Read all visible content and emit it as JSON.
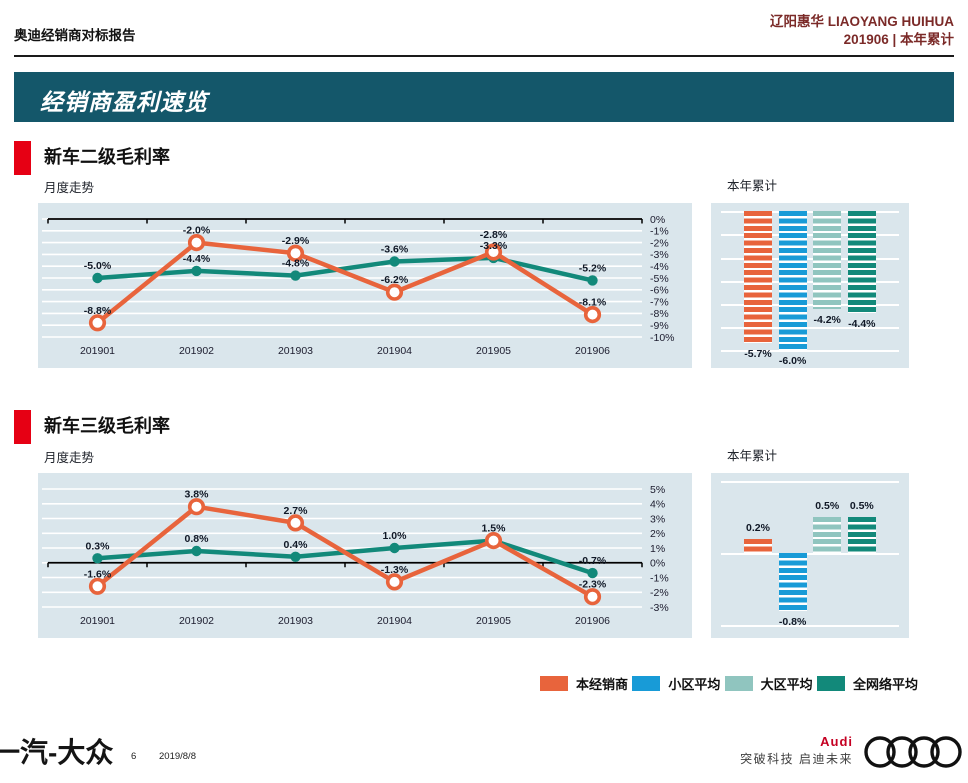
{
  "header": {
    "report_title": "奥迪经销商对标报告",
    "dealer_name": "辽阳惠华 LIAOYANG HUIHUA",
    "period": "201906 | 本年累计"
  },
  "banner": {
    "title": "经销商盈利速览"
  },
  "colors": {
    "accent_red": "#e60014",
    "banner_teal": "#14576a",
    "header_maroon": "#7b2a28",
    "panel_bg": "#dae6ec",
    "dealer_orange": "#e8643c",
    "district_blue": "#189bd7",
    "region_teal": "#90c5bf",
    "network_teal": "#12897a",
    "audi_red": "#c50022",
    "label_dark": "#101826"
  },
  "sections": [
    {
      "title": "新车二级毛利率",
      "trend_label": "月度走势",
      "ytd_label": "本年累计"
    },
    {
      "title": "新车三级毛利率",
      "trend_label": "月度走势",
      "ytd_label": "本年累计"
    }
  ],
  "chart_data": [
    {
      "type": "line",
      "title": "新车二级毛利率",
      "subtitle": "月度走势",
      "x": [
        "201901",
        "201902",
        "201903",
        "201904",
        "201905",
        "201906"
      ],
      "ylim": [
        -10,
        0
      ],
      "ytick_step": 1,
      "unit": "%",
      "grid": true,
      "legend_position": "none",
      "series": [
        {
          "key": "network",
          "name": "全网络平均",
          "color": "#12897a",
          "marker": "dot",
          "values": [
            -5.0,
            -4.4,
            -4.8,
            -3.6,
            -3.3,
            -5.2
          ]
        },
        {
          "key": "dealer",
          "name": "本经销商",
          "color": "#e8643c",
          "marker": "open-circle",
          "values": [
            -8.8,
            -2.0,
            -2.9,
            -6.2,
            -2.8,
            -8.1
          ]
        }
      ]
    },
    {
      "type": "bar",
      "title": "新车二级毛利率",
      "subtitle": "本年累计",
      "categories": [
        "本经销商",
        "小区平均",
        "大区平均",
        "全网络平均"
      ],
      "keys": [
        "dealer",
        "district",
        "region",
        "network"
      ],
      "values": [
        -5.7,
        -6.0,
        -4.2,
        -4.4
      ],
      "colors": [
        "#e8643c",
        "#189bd7",
        "#90c5bf",
        "#12897a"
      ],
      "ylim": [
        -6.2,
        0
      ],
      "grid_step": 1,
      "unit": "%"
    },
    {
      "type": "line",
      "title": "新车三级毛利率",
      "subtitle": "月度走势",
      "x": [
        "201901",
        "201902",
        "201903",
        "201904",
        "201905",
        "201906"
      ],
      "ylim": [
        -3,
        5
      ],
      "ytick_step": 1,
      "unit": "%",
      "grid": true,
      "legend_position": "none",
      "series": [
        {
          "key": "network",
          "name": "全网络平均",
          "color": "#12897a",
          "marker": "dot",
          "values": [
            0.3,
            0.8,
            0.4,
            1.0,
            1.5,
            -0.7
          ],
          "hide_label_at": [
            4
          ]
        },
        {
          "key": "dealer",
          "name": "本经销商",
          "color": "#e8643c",
          "marker": "open-circle",
          "values": [
            -1.6,
            3.8,
            2.7,
            -1.3,
            1.5,
            -2.3
          ]
        }
      ]
    },
    {
      "type": "bar",
      "title": "新车三级毛利率",
      "subtitle": "本年累计",
      "categories": [
        "本经销商",
        "小区平均",
        "大区平均",
        "全网络平均"
      ],
      "keys": [
        "dealer",
        "district",
        "region",
        "network"
      ],
      "values": [
        0.2,
        -0.8,
        0.5,
        0.5
      ],
      "colors": [
        "#e8643c",
        "#189bd7",
        "#90c5bf",
        "#12897a"
      ],
      "ylim": [
        -1,
        1
      ],
      "grid_step": 1,
      "unit": "%"
    }
  ],
  "legend": {
    "items": [
      {
        "label": "本经销商",
        "color": "#e8643c"
      },
      {
        "label": "小区平均",
        "color": "#189bd7"
      },
      {
        "label": "大区平均",
        "color": "#90c5bf"
      },
      {
        "label": "全网络平均",
        "color": "#12897a"
      }
    ]
  },
  "footer": {
    "brand_logo": "一汽-大众",
    "page_number": "6",
    "date": "2019/8/8",
    "audi_wordmark": "Audi",
    "audi_slogan": "突破科技 启迪未来"
  }
}
